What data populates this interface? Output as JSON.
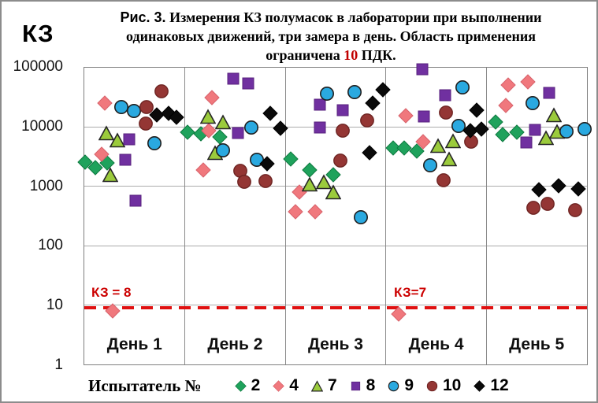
{
  "title": {
    "prefix": "Рис. 3.",
    "line1": " Измерения КЗ полумасок в лаборатории при выполнении",
    "line2": "одинаковых движений, три замера в день. Область применения",
    "line3_before": "ограничена ",
    "line3_value": "10",
    "line3_after": " ПДК."
  },
  "y_axis": {
    "title": "КЗ",
    "ticks": [
      "100000",
      "10000",
      "1000",
      "100",
      "10",
      "1"
    ]
  },
  "legend": {
    "title": "Испытатель №"
  },
  "chart_data": {
    "type": "scatter",
    "title": "Рис. 3. Измерения КЗ полумасок в лаборатории при выполнении одинаковых движений, три замера в день. Область применения ограничена 10 ПДК.",
    "ylabel": "КЗ",
    "y_scale": "log",
    "ylim": [
      1,
      100000
    ],
    "y_ticks": [
      100000,
      10000,
      1000,
      100,
      10,
      1
    ],
    "grid": "horizontal-decades",
    "legend_position": "bottom",
    "legend_title": "Испытатель №",
    "x_categories": [
      "День 1",
      "День 2",
      "День 3",
      "День 4",
      "День 5"
    ],
    "threshold_line": {
      "value": 10,
      "style": "dashed",
      "color": "#E01010",
      "labels": [
        {
          "text": "КЗ = 8",
          "day": 1
        },
        {
          "text": "КЗ=7",
          "day": 4
        }
      ]
    },
    "series": [
      {
        "name": "2",
        "marker": "diamond",
        "color": "#1FA25C",
        "stroke": "#0E7A40",
        "stroke_width": 1,
        "points": [
          [
            1,
            0.01,
            2600
          ],
          [
            1,
            0.11,
            2050
          ],
          [
            1,
            0.23,
            2450
          ],
          [
            2,
            0.03,
            8300
          ],
          [
            2,
            0.16,
            7600
          ],
          [
            2,
            0.35,
            6800
          ],
          [
            3,
            0.05,
            2900
          ],
          [
            3,
            0.24,
            1900
          ],
          [
            3,
            0.48,
            1550
          ],
          [
            4,
            0.07,
            4500
          ],
          [
            4,
            0.18,
            4400
          ],
          [
            4,
            0.31,
            3900
          ],
          [
            5,
            0.09,
            12000
          ],
          [
            5,
            0.16,
            7400
          ],
          [
            5,
            0.3,
            8100
          ]
        ]
      },
      {
        "name": "4",
        "marker": "diamond",
        "color": "#F0787D",
        "stroke": "#D8616A",
        "stroke_width": 1,
        "points": [
          [
            1,
            0.2,
            25000
          ],
          [
            1,
            0.17,
            3500
          ],
          [
            1,
            0.28,
            8
          ],
          [
            2,
            0.27,
            31000
          ],
          [
            2,
            0.24,
            8800
          ],
          [
            2,
            0.18,
            1900
          ],
          [
            3,
            0.14,
            810
          ],
          [
            3,
            0.1,
            370
          ],
          [
            3,
            0.3,
            370
          ],
          [
            4,
            0.2,
            15500
          ],
          [
            4,
            0.37,
            5600
          ],
          [
            4,
            0.13,
            7
          ],
          [
            5,
            0.22,
            51000
          ],
          [
            5,
            0.41,
            57000
          ],
          [
            5,
            0.19,
            23000
          ]
        ]
      },
      {
        "name": "7",
        "marker": "triangle",
        "color": "#9BCB3C",
        "stroke": "#262626",
        "stroke_width": 1.6,
        "points": [
          [
            1,
            0.22,
            8000
          ],
          [
            1,
            0.33,
            6100
          ],
          [
            1,
            0.26,
            1550
          ],
          [
            2,
            0.23,
            15000
          ],
          [
            2,
            0.38,
            12000
          ],
          [
            2,
            0.3,
            3700
          ],
          [
            3,
            0.24,
            1100
          ],
          [
            3,
            0.38,
            1200
          ],
          [
            3,
            0.48,
            800
          ],
          [
            4,
            0.52,
            4900
          ],
          [
            4,
            0.67,
            5800
          ],
          [
            4,
            0.63,
            2900
          ],
          [
            5,
            0.67,
            16000
          ],
          [
            5,
            0.7,
            8400
          ],
          [
            5,
            0.59,
            6600
          ]
        ]
      },
      {
        "name": "8",
        "marker": "square",
        "color": "#7030A0",
        "stroke": "#57217E",
        "stroke_width": 1,
        "points": [
          [
            1,
            0.45,
            6300
          ],
          [
            1,
            0.41,
            2800
          ],
          [
            1,
            0.51,
            580
          ],
          [
            2,
            0.48,
            66000
          ],
          [
            2,
            0.63,
            54000
          ],
          [
            2,
            0.53,
            8000
          ],
          [
            3,
            0.34,
            24000
          ],
          [
            3,
            0.57,
            19000
          ],
          [
            3,
            0.34,
            9700
          ],
          [
            4,
            0.36,
            95000
          ],
          [
            4,
            0.59,
            34000
          ],
          [
            4,
            0.38,
            15000
          ],
          [
            5,
            0.62,
            38000
          ],
          [
            5,
            0.48,
            9000
          ],
          [
            5,
            0.4,
            5500
          ]
        ]
      },
      {
        "name": "9",
        "marker": "circle",
        "color": "#2AA9E0",
        "stroke": "#1F1F1F",
        "stroke_width": 1.6,
        "points": [
          [
            1,
            0.37,
            22000
          ],
          [
            1,
            0.49,
            18500
          ],
          [
            1,
            0.7,
            5400
          ],
          [
            2,
            0.66,
            9800
          ],
          [
            2,
            0.38,
            4100
          ],
          [
            2,
            0.72,
            2800
          ],
          [
            3,
            0.41,
            36000
          ],
          [
            3,
            0.69,
            39000
          ],
          [
            3,
            0.75,
            300
          ],
          [
            4,
            0.76,
            47000
          ],
          [
            4,
            0.72,
            10500
          ],
          [
            4,
            0.44,
            2250
          ],
          [
            5,
            0.46,
            25000
          ],
          [
            5,
            0.8,
            8400
          ],
          [
            5,
            0.98,
            9200
          ]
        ]
      },
      {
        "name": "10",
        "marker": "circle",
        "color": "#943634",
        "stroke": "#6E2422",
        "stroke_width": 1.4,
        "points": [
          [
            1,
            0.77,
            40000
          ],
          [
            1,
            0.62,
            22000
          ],
          [
            1,
            0.61,
            11500
          ],
          [
            2,
            0.55,
            1850
          ],
          [
            2,
            0.59,
            1200
          ],
          [
            2,
            0.8,
            1230
          ],
          [
            3,
            0.81,
            13000
          ],
          [
            3,
            0.57,
            8800
          ],
          [
            3,
            0.55,
            2700
          ],
          [
            4,
            0.6,
            17500
          ],
          [
            4,
            0.85,
            5700
          ],
          [
            4,
            0.57,
            1250
          ],
          [
            5,
            0.47,
            430
          ],
          [
            5,
            0.61,
            500
          ],
          [
            5,
            0.88,
            400
          ]
        ]
      },
      {
        "name": "12",
        "marker": "diamond",
        "color": "#0A0A0A",
        "stroke": "#000000",
        "stroke_width": 1,
        "points": [
          [
            1,
            0.72,
            16000
          ],
          [
            1,
            0.84,
            17000
          ],
          [
            1,
            0.92,
            14500
          ],
          [
            2,
            0.85,
            17000
          ],
          [
            2,
            0.95,
            9500
          ],
          [
            2,
            0.82,
            2400
          ],
          [
            3,
            0.97,
            42000
          ],
          [
            3,
            0.87,
            25000
          ],
          [
            3,
            0.84,
            3650
          ],
          [
            4,
            0.9,
            19000
          ],
          [
            4,
            0.84,
            8600
          ],
          [
            4,
            0.95,
            9200
          ],
          [
            5,
            0.52,
            880
          ],
          [
            5,
            0.72,
            1020
          ],
          [
            5,
            0.91,
            900
          ]
        ]
      }
    ]
  }
}
